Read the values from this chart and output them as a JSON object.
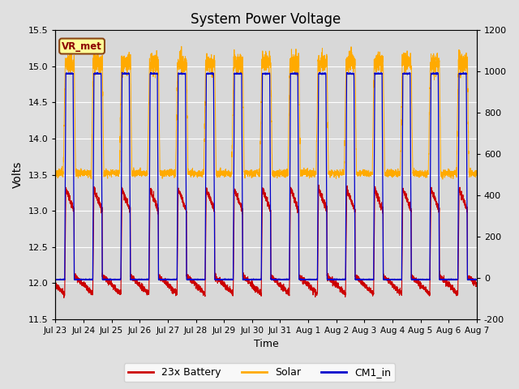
{
  "title": "System Power Voltage",
  "xlabel": "Time",
  "ylabel_left": "Volts",
  "ylim_left": [
    11.5,
    15.5
  ],
  "ylim_right": [
    -200,
    1200
  ],
  "background_color": "#e0e0e0",
  "plot_bg_color": "#d8d8d8",
  "grid_color": "white",
  "annotation_text": "VR_met",
  "annotation_box_color": "#ffff99",
  "annotation_box_edge": "#8B4513",
  "x_tick_labels": [
    "Jul 23",
    "Jul 24",
    "Jul 25",
    "Jul 26",
    "Jul 27",
    "Jul 28",
    "Jul 29",
    "Jul 30",
    "Jul 31",
    "Aug 1",
    "Aug 2",
    "Aug 3",
    "Aug 4",
    "Aug 5",
    "Aug 6",
    "Aug 7"
  ],
  "legend_labels": [
    "23x Battery",
    "Solar",
    "CM1_in"
  ],
  "legend_colors": [
    "#cc0000",
    "#ffaa00",
    "#0000cc"
  ],
  "n_days": 15,
  "right_tick_labels": [
    "-200",
    "0",
    "200",
    "400",
    "600",
    "800",
    "1000",
    "1200"
  ],
  "right_tick_values": [
    -200,
    0,
    200,
    400,
    600,
    800,
    1000,
    1200
  ],
  "left_tick_values": [
    11.5,
    12.0,
    12.5,
    13.0,
    13.5,
    14.0,
    14.5,
    15.0,
    15.5
  ]
}
